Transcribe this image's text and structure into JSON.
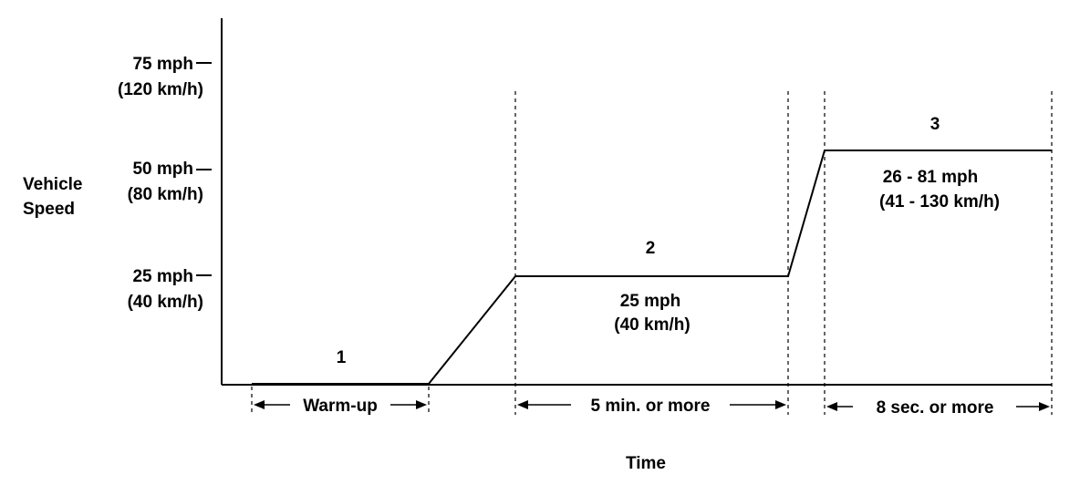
{
  "axes": {
    "y_label_line1": "Vehicle",
    "y_label_line2": "Speed",
    "x_label": "Time"
  },
  "y_ticks": [
    {
      "mph": "75 mph",
      "kmh": "(120 km/h)"
    },
    {
      "mph": "50 mph",
      "kmh": "(80 km/h)"
    },
    {
      "mph": "25 mph",
      "kmh": "(40 km/h)"
    }
  ],
  "phases": [
    {
      "number": "1",
      "duration": "Warm-up"
    },
    {
      "number": "2",
      "speed_line1": "25 mph",
      "speed_line2": "(40 km/h)",
      "duration": "5 min. or more"
    },
    {
      "number": "3",
      "speed_line1": "26 - 81 mph",
      "speed_line2": "(41 - 130 km/h)",
      "duration": "8 sec. or more"
    }
  ]
}
